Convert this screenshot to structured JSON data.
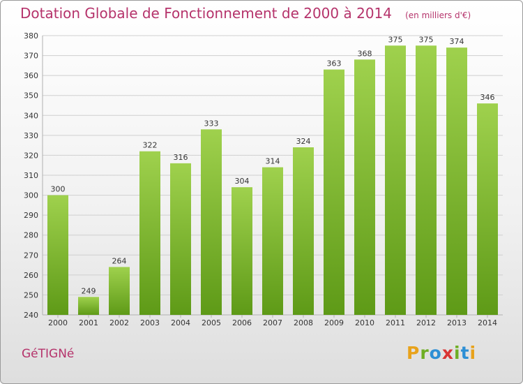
{
  "header": {
    "title": "Dotation Globale de Fonctionnement de 2000 à 2014",
    "unit": "(en milliers d'€)"
  },
  "footer": {
    "commune": "GéTIGNé",
    "logo": {
      "letters": [
        "P",
        "r",
        "o",
        "x",
        "i",
        "t",
        "i"
      ],
      "colors": [
        "#e8a21b",
        "#6fae24",
        "#2d8fd5",
        "#d93434",
        "#6fae24",
        "#2d8fd5",
        "#e8a21b"
      ]
    }
  },
  "chart_data": {
    "type": "bar",
    "title": "Dotation Globale de Fonctionnement de 2000 à 2014",
    "subtitle": "(en milliers d'€)",
    "xlabel": "",
    "ylabel": "",
    "categories": [
      "2000",
      "2001",
      "2002",
      "2003",
      "2004",
      "2005",
      "2006",
      "2007",
      "2008",
      "2009",
      "2010",
      "2011",
      "2012",
      "2013",
      "2014"
    ],
    "values": [
      300,
      249,
      264,
      322,
      316,
      333,
      304,
      314,
      324,
      363,
      368,
      375,
      375,
      374,
      346
    ],
    "ylim": [
      240,
      380
    ],
    "yticks": [
      240,
      250,
      260,
      270,
      280,
      290,
      300,
      310,
      320,
      330,
      340,
      350,
      360,
      370,
      380
    ],
    "grid": true,
    "bar_color_top": "#9fd14d",
    "bar_color_bottom": "#5e9a17"
  }
}
